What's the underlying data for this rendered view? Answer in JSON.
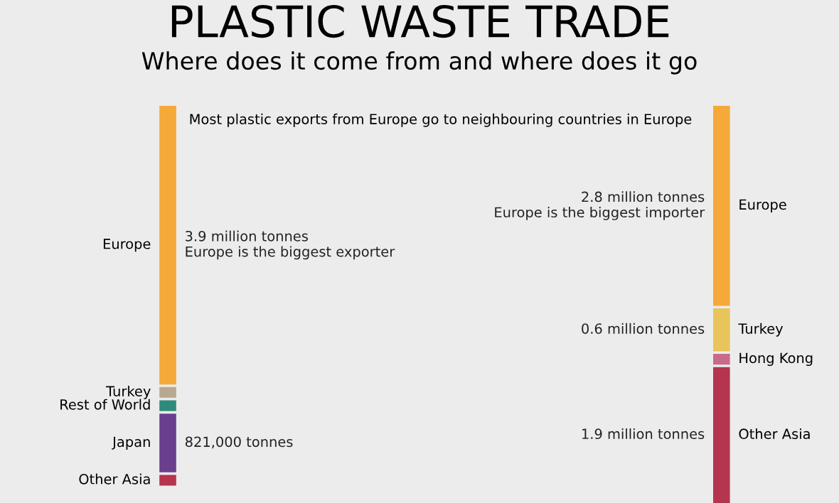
{
  "chart_data": [
    {
      "type": "other",
      "title": "PLASTIC WASTE TRADE",
      "subtitle": "Where does it come from and where does it go",
      "annotations": [
        "Most plastic exports from Europe go to neighbouring countries in Europe",
        "Europe is the biggest exporter"
      ],
      "categories": [
        "Europe",
        "Turkey",
        "Rest of World",
        "Japan",
        "Other Asia"
      ],
      "values": [
        3900000,
        null,
        null,
        821000,
        null
      ],
      "colors": [
        "#f5a93a",
        "#b8a890",
        "#2e8b7a",
        "#6a3f8e",
        "#b5344e"
      ],
      "value_labels": [
        "3.9 million tonnes",
        null,
        null,
        "821,000 tonnes",
        null
      ]
    },
    {
      "type": "other",
      "annotations": [
        "Europe is the biggest importer"
      ],
      "categories": [
        "Europe",
        "Turkey",
        "Hong Kong",
        "Other Asia"
      ],
      "values": [
        2800000,
        600000,
        null,
        1900000
      ],
      "colors": [
        "#f5a93a",
        "#e8c45a",
        "#c96a8a",
        "#b5344e"
      ],
      "value_labels": [
        "2.8 million tonnes",
        "0.6 million tonnes",
        null,
        "1.9 million tonnes"
      ]
    }
  ]
}
